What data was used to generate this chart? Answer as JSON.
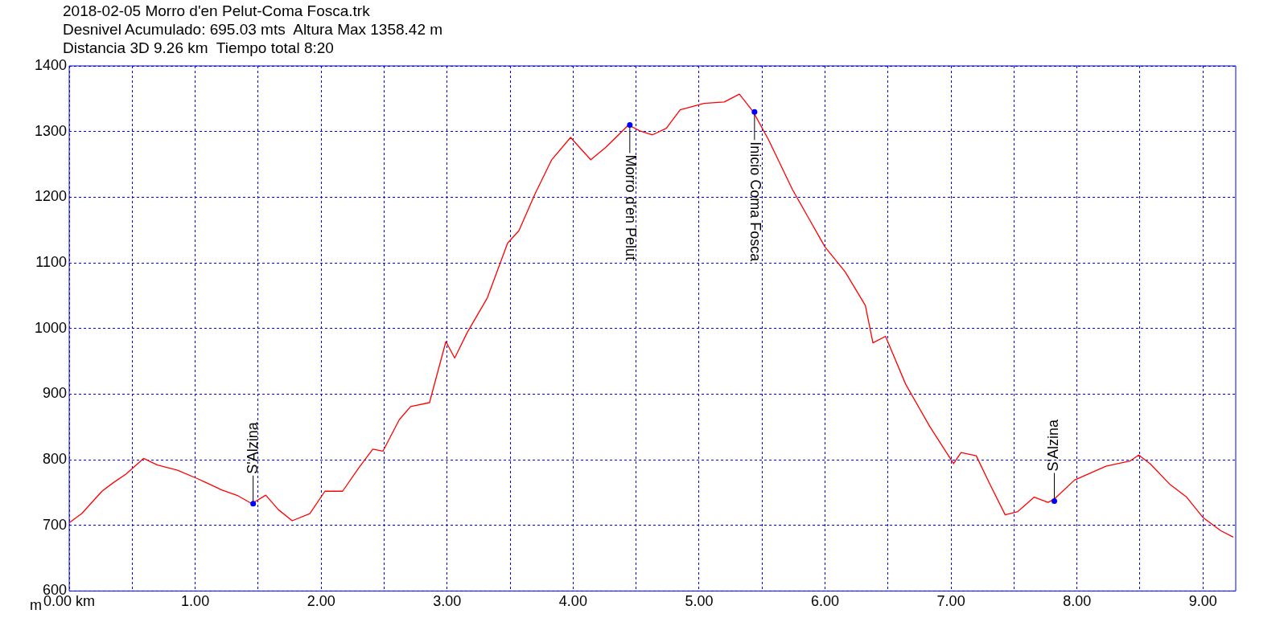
{
  "chart_data": {
    "type": "line",
    "title": "2018-02-05 Morro d'en Pelut-Coma Fosca.trk",
    "subtitle": "Desnivel Acumulado: 695.03 mts  Altura Max 1358.42 m\nDistancia 3D 9.26 km  Tiempo total 8:20",
    "ylabel": "m",
    "series": [
      {
        "color": "#ff0000",
        "x": [
          0,
          0.1,
          0.26,
          0.35,
          0.45,
          0.59,
          0.7,
          0.86,
          1.02,
          1.21,
          1.34,
          1.45,
          1.56,
          1.66,
          1.77,
          1.91,
          2.03,
          2.17,
          2.3,
          2.41,
          2.49,
          2.62,
          2.71,
          2.86,
          2.99,
          3.06,
          3.16,
          3.32,
          3.48,
          3.57,
          3.7,
          3.83,
          3.98,
          4.05,
          4.14,
          4.26,
          4.44,
          4.53,
          4.63,
          4.74,
          4.85,
          5.04,
          5.2,
          5.32,
          5.43,
          5.55,
          5.74,
          5.87,
          6,
          6.16,
          6.32,
          6.38,
          6.48,
          6.64,
          6.83,
          7.02,
          7.08,
          7.2,
          7.31,
          7.43,
          7.53,
          7.66,
          7.77,
          7.82,
          7.98,
          8.23,
          8.42,
          8.49,
          8.58,
          8.74,
          8.87,
          9,
          9.14,
          9.24
        ],
        "values": [
          704,
          718,
          752,
          765,
          778,
          802,
          792,
          784,
          771,
          754,
          745,
          733,
          746,
          724,
          707,
          718,
          752,
          752,
          788,
          816,
          813,
          861,
          881,
          887,
          980,
          955,
          994,
          1047,
          1130,
          1149,
          1206,
          1257,
          1291,
          1276,
          1257,
          1276,
          1310,
          1301,
          1295,
          1305,
          1333,
          1343,
          1345,
          1357,
          1330,
          1288,
          1212,
          1168,
          1124,
          1086,
          1035,
          978,
          988,
          915,
          851,
          794,
          811,
          806,
          762,
          716,
          721,
          743,
          735,
          740,
          769,
          790,
          798,
          807,
          794,
          762,
          743,
          712,
          692,
          682
        ]
      }
    ],
    "annotations": [
      {
        "text": "S'Alzina",
        "x": 1.46,
        "y": 733
      },
      {
        "text": "Morro d'en Pelut",
        "x": 4.45,
        "y": 1310
      },
      {
        "text": "Inicio Coma Fosca",
        "x": 5.44,
        "y": 1330
      },
      {
        "text": "S'Alzina",
        "x": 7.82,
        "y": 737
      }
    ],
    "xlim": [
      0,
      9.26
    ],
    "xticks": [
      {
        "value": 0,
        "label": "0.00 km"
      },
      {
        "value": 0.5,
        "label": null
      },
      {
        "value": 1,
        "label": "1.00"
      },
      {
        "value": 1.5,
        "label": null
      },
      {
        "value": 2,
        "label": "2.00"
      },
      {
        "value": 2.5,
        "label": null
      },
      {
        "value": 3,
        "label": "3.00"
      },
      {
        "value": 3.5,
        "label": null
      },
      {
        "value": 4,
        "label": "4.00"
      },
      {
        "value": 4.5,
        "label": null
      },
      {
        "value": 5,
        "label": "5.00"
      },
      {
        "value": 5.5,
        "label": null
      },
      {
        "value": 6,
        "label": "6.00"
      },
      {
        "value": 6.5,
        "label": null
      },
      {
        "value": 7,
        "label": "7.00"
      },
      {
        "value": 7.5,
        "label": null
      },
      {
        "value": 8,
        "label": "8.00"
      },
      {
        "value": 8.5,
        "label": null
      },
      {
        "value": 9,
        "label": "9.00"
      }
    ],
    "ylim": [
      600,
      1400
    ],
    "yticks": [
      600,
      700,
      800,
      900,
      1000,
      1100,
      1200,
      1300,
      1400
    ],
    "grid": true,
    "legend": false,
    "marker": "none",
    "line_style": "solid"
  }
}
